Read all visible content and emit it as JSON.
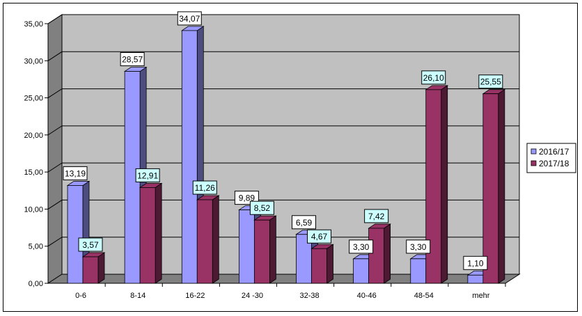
{
  "chart_data": {
    "type": "bar",
    "categories": [
      "0-6",
      "8-14",
      "16-22",
      "24 -30",
      "32-38",
      "40-46",
      "48-54",
      "mehr"
    ],
    "series": [
      {
        "name": "2016/17",
        "values": [
          13.19,
          28.57,
          34.07,
          9.89,
          6.59,
          3.3,
          3.3,
          1.1
        ],
        "labels": [
          "13,19",
          "28,57",
          "34,07",
          "9,89",
          "6,59",
          "3,30",
          "3,30",
          "1,10"
        ],
        "color": "#9999ff",
        "side_color": "#4d4d80",
        "label_bg": "#ffffff"
      },
      {
        "name": "2017/18",
        "values": [
          3.57,
          12.91,
          11.26,
          8.52,
          4.67,
          7.42,
          26.1,
          25.55
        ],
        "labels": [
          "3,57",
          "12,91",
          "11,26",
          "8,52",
          "4,67",
          "7,42",
          "26,10",
          "25,55"
        ],
        "color": "#993366",
        "side_color": "#4d1a33",
        "label_bg": "#ccffff"
      }
    ],
    "y_ticks": [
      "0,00",
      "5,00",
      "10,00",
      "15,00",
      "20,00",
      "25,00",
      "30,00",
      "35,00"
    ],
    "ylim": [
      0,
      35
    ],
    "grid": true,
    "legend_position": "right",
    "wall_color": "#c0c0c0",
    "floor_color": "#808080"
  }
}
